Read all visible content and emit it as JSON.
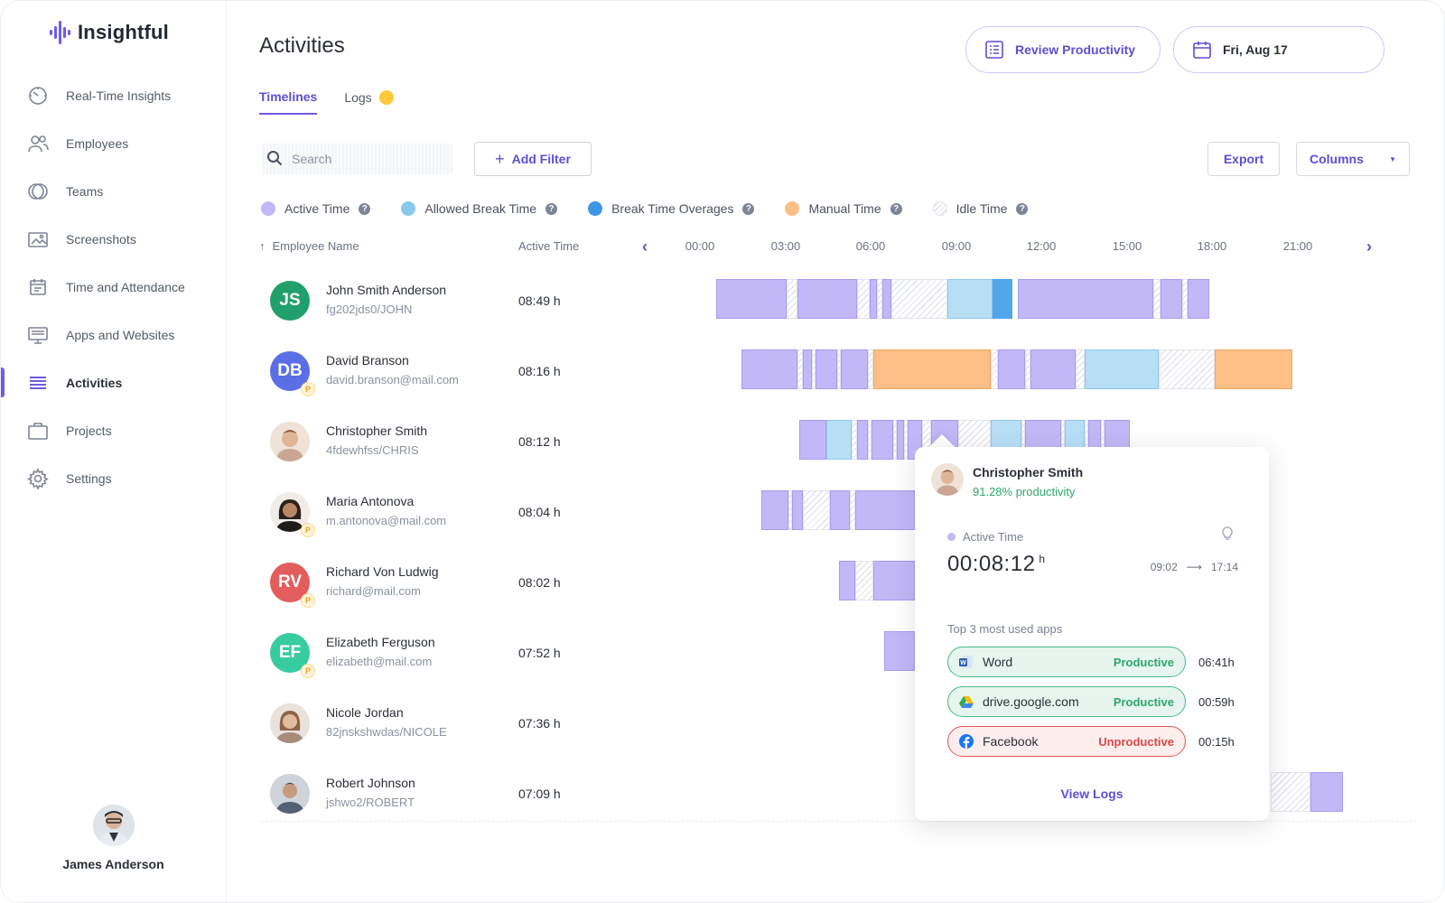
{
  "app": {
    "name": "Insightful",
    "accent": "#6c5ce7"
  },
  "sidebar": {
    "items": [
      {
        "label": "Real-Time Insights",
        "icon": "gauge-icon"
      },
      {
        "label": "Employees",
        "icon": "users-icon"
      },
      {
        "label": "Teams",
        "icon": "teams-icon"
      },
      {
        "label": "Screenshots",
        "icon": "screenshots-icon"
      },
      {
        "label": "Time and Attendance",
        "icon": "calendar-icon"
      },
      {
        "label": "Apps and Websites",
        "icon": "monitor-icon"
      },
      {
        "label": "Activities",
        "icon": "list-icon",
        "active": true
      },
      {
        "label": "Projects",
        "icon": "briefcase-icon"
      },
      {
        "label": "Settings",
        "icon": "gear-icon"
      }
    ],
    "user": {
      "name": "James Anderson"
    }
  },
  "header": {
    "title": "Activities",
    "review_button": "Review Productivity",
    "date_button": "Fri, Aug 17"
  },
  "tabs": {
    "timelines": "Timelines",
    "logs": "Logs"
  },
  "toolbar": {
    "search_placeholder": "Search",
    "add_filter": "Add Filter",
    "export": "Export",
    "columns": "Columns"
  },
  "legend": {
    "active": "Active Time",
    "allowed": "Allowed Break Time",
    "overage": "Break Time Overages",
    "manual": "Manual Time",
    "idle": "Idle Time",
    "colors": {
      "active": "#c3b8f7",
      "allowed": "#8cc8ee",
      "overage": "#4fa6e8",
      "manual": "#fdbf86",
      "idle": "#d9dde6"
    }
  },
  "table": {
    "col_employee": "Employee Name",
    "col_active": "Active Time",
    "hours": [
      "00:00",
      "03:00",
      "06:00",
      "09:00",
      "12:00",
      "15:00",
      "18:00",
      "21:00"
    ]
  },
  "employees": [
    {
      "name": "John Smith Anderson",
      "sub": "fg202jds0/JOHN",
      "time": "08:49 h",
      "initials": "JS",
      "color": "#22a06b",
      "badge": false
    },
    {
      "name": "David Branson",
      "sub": "david.branson@mail.com",
      "time": "08:16 h",
      "initials": "DB",
      "color": "#5a6ee6",
      "badge": true
    },
    {
      "name": "Christopher Smith",
      "sub": "4fdewhfss/CHRIS",
      "time": "08:12 h",
      "initials": "",
      "color": "#c89a7a",
      "badge": false
    },
    {
      "name": "Maria Antonova",
      "sub": "m.antonova@mail.com",
      "time": "08:04 h",
      "initials": "",
      "color": "#6b5146",
      "badge": true
    },
    {
      "name": "Richard Von Ludwig",
      "sub": "richard@mail.com",
      "time": "08:02 h",
      "initials": "RV",
      "color": "#e35d5d",
      "badge": true
    },
    {
      "name": "Elizabeth Ferguson",
      "sub": "elizabeth@mail.com",
      "time": "07:52 h",
      "initials": "EF",
      "color": "#37cca0",
      "badge": true
    },
    {
      "name": "Nicole Jordan",
      "sub": "82jnskshwdas/NICOLE",
      "time": "07:36 h",
      "initials": "",
      "color": "#b9907a",
      "badge": false
    },
    {
      "name": "Robert Johnson",
      "sub": "jshwo2/ROBERT",
      "time": "07:09 h",
      "initials": "",
      "color": "#5b6577",
      "badge": false
    }
  ],
  "tooltip": {
    "name": "Christopher Smith",
    "productivity": "91.28% productivity",
    "active_label": "Active Time",
    "timer": "00:08:12",
    "timer_unit": "h",
    "range_start": "09:02",
    "range_end": "17:14",
    "top_label": "Top 3 most used apps",
    "apps": [
      {
        "name": "Word",
        "status": "Productive",
        "time": "06:41h"
      },
      {
        "name": "drive.google.com",
        "status": "Productive",
        "time": "00:59h"
      },
      {
        "name": "Facebook",
        "status": "Unproductive",
        "time": "00:15h"
      }
    ],
    "view_logs": "View Logs"
  }
}
